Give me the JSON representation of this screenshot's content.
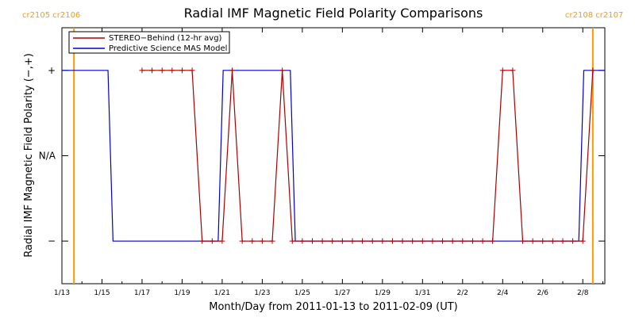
{
  "colors": {
    "stereo": "#aa0000",
    "model": "#0000cc",
    "cr_line": "#ff9900",
    "corner_text": "#ff9900",
    "axis": "#000000"
  },
  "corner_labels": {
    "left": "cr2105 cr2106",
    "right": "cr2108 cr2107"
  },
  "chart_data": {
    "type": "line",
    "title": "Radial IMF Magnetic Field Polarity Comparisons",
    "xlabel": "Month/Day from 2011-01-13 to 2011-02-09 (UT)",
    "ylabel": "Radial IMF Magnetic Field Polarity (−,+)",
    "x_unit": "days since 2011-01-13",
    "xlim": [
      0,
      27.1
    ],
    "ylim": [
      -1.5,
      1.5
    ],
    "y_ticks": [
      {
        "value": 1,
        "label": "+"
      },
      {
        "value": 0,
        "label": "N/A"
      },
      {
        "value": -1,
        "label": "−"
      }
    ],
    "x_ticks": [
      {
        "value": 0,
        "label": "1/13"
      },
      {
        "value": 2,
        "label": "1/15"
      },
      {
        "value": 4,
        "label": "1/17"
      },
      {
        "value": 6,
        "label": "1/19"
      },
      {
        "value": 8,
        "label": "1/21"
      },
      {
        "value": 10,
        "label": "1/23"
      },
      {
        "value": 12,
        "label": "1/25"
      },
      {
        "value": 14,
        "label": "1/27"
      },
      {
        "value": 16,
        "label": "1/29"
      },
      {
        "value": 18,
        "label": "1/31"
      },
      {
        "value": 20,
        "label": "2/2"
      },
      {
        "value": 22,
        "label": "2/4"
      },
      {
        "value": 24,
        "label": "2/6"
      },
      {
        "value": 26,
        "label": "2/8"
      }
    ],
    "legend": {
      "placement": "top-left",
      "entries": [
        {
          "name": "STEREO−Behind (12-hr avg)",
          "color": "#aa0000"
        },
        {
          "name": "Predictive Science MAS Model",
          "color": "#0000cc"
        }
      ]
    },
    "carrington_lines": [
      0.6,
      26.5
    ],
    "series": [
      {
        "name": "STEREO−Behind (12-hr avg)",
        "color": "#aa0000",
        "marker": "plus",
        "x": [
          4.0,
          4.5,
          5.0,
          5.5,
          6.0,
          6.5,
          7.0,
          7.5,
          8.0,
          8.5,
          9.0,
          9.5,
          10.0,
          10.5,
          11.0,
          11.5,
          12.0,
          12.5,
          13.0,
          13.5,
          14.0,
          14.5,
          15.0,
          15.5,
          16.0,
          16.5,
          17.0,
          17.5,
          18.0,
          18.5,
          19.0,
          19.5,
          20.0,
          20.5,
          21.0,
          21.5,
          22.0,
          22.5,
          23.0,
          23.5,
          24.0,
          24.5,
          25.0,
          25.5,
          26.0,
          26.5
        ],
        "y": [
          1,
          1,
          1,
          1,
          1,
          1,
          -1,
          -1,
          -1,
          1,
          -1,
          -1,
          -1,
          -1,
          1,
          -1,
          -1,
          -1,
          -1,
          -1,
          -1,
          -1,
          -1,
          -1,
          -1,
          -1,
          -1,
          -1,
          -1,
          -1,
          -1,
          -1,
          -1,
          -1,
          -1,
          -1,
          1,
          1,
          -1,
          -1,
          -1,
          -1,
          -1,
          -1,
          -1,
          1
        ]
      },
      {
        "name": "Predictive Science MAS Model",
        "color": "#0000cc",
        "marker": "none",
        "x": [
          0.0,
          2.3,
          2.55,
          7.8,
          8.05,
          11.4,
          11.65,
          25.8,
          26.05,
          27.1
        ],
        "y": [
          1,
          1,
          -1,
          -1,
          1,
          1,
          -1,
          -1,
          1,
          1
        ]
      }
    ]
  }
}
